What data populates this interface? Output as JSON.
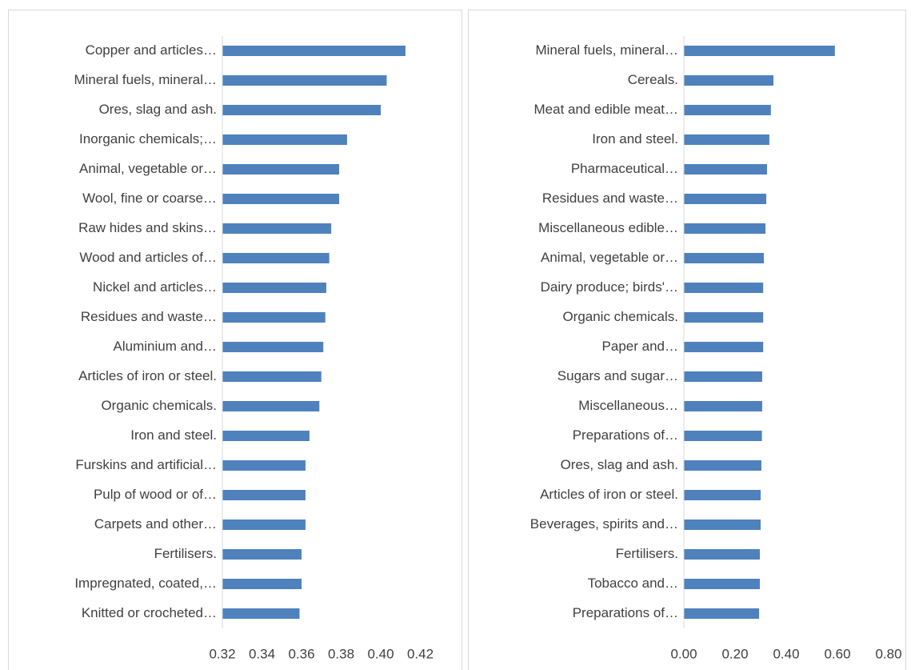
{
  "chart_data": [
    {
      "type": "bar",
      "orientation": "horizontal",
      "color": "#4f81bd",
      "categories": [
        "Copper and articles…",
        "Mineral fuels, mineral…",
        "Ores, slag and ash.",
        "Inorganic chemicals;…",
        "Animal, vegetable or…",
        "Wool, fine or coarse…",
        "Raw hides and skins…",
        "Wood and articles of…",
        "Nickel and articles…",
        "Residues and waste…",
        "Aluminium and…",
        "Articles of iron or steel.",
        "Organic chemicals.",
        "Iron and steel.",
        "Furskins and artificial…",
        "Pulp of wood or of…",
        "Carpets and other…",
        "Fertilisers.",
        "Impregnated, coated,…",
        "Knitted or crocheted…"
      ],
      "values": [
        0.4125,
        0.403,
        0.4,
        0.383,
        0.379,
        0.379,
        0.375,
        0.374,
        0.3725,
        0.372,
        0.371,
        0.37,
        0.369,
        0.364,
        0.362,
        0.362,
        0.362,
        0.36,
        0.36,
        0.359
      ],
      "xlim": [
        0.32,
        0.42
      ],
      "xticks": [
        0.32,
        0.34,
        0.36,
        0.38,
        {
          "value": 0.4,
          "label": "0.40"
        },
        0.42
      ]
    },
    {
      "type": "bar",
      "orientation": "horizontal",
      "color": "#4f81bd",
      "categories": [
        "Mineral fuels, mineral…",
        "Cereals.",
        "Meat and edible meat…",
        "Iron and steel.",
        "Pharmaceutical…",
        "Residues and waste…",
        "Miscellaneous edible…",
        "Animal, vegetable or…",
        "Dairy produce; birds'…",
        "Organic chemicals.",
        "Paper and…",
        "Sugars and sugar…",
        "Miscellaneous…",
        "Preparations of…",
        "Ores, slag and ash.",
        "Articles of iron or steel.",
        "Beverages, spirits and…",
        "Fertilisers.",
        "Tobacco and…",
        "Preparations of…"
      ],
      "values": [
        0.59,
        0.35,
        0.34,
        0.334,
        0.325,
        0.322,
        0.319,
        0.3125,
        0.31,
        0.31,
        0.31,
        0.306,
        0.306,
        0.305,
        0.303,
        0.3,
        0.3,
        0.297,
        0.297,
        0.294
      ],
      "xlim": [
        0,
        0.8
      ],
      "xticks": [
        {
          "value": 0,
          "label": "0.00"
        },
        {
          "value": 0.2,
          "label": "0.20"
        },
        {
          "value": 0.4,
          "label": "0.40"
        },
        {
          "value": 0.6,
          "label": "0.60"
        },
        {
          "value": 0.8,
          "label": "0.80"
        }
      ]
    }
  ]
}
